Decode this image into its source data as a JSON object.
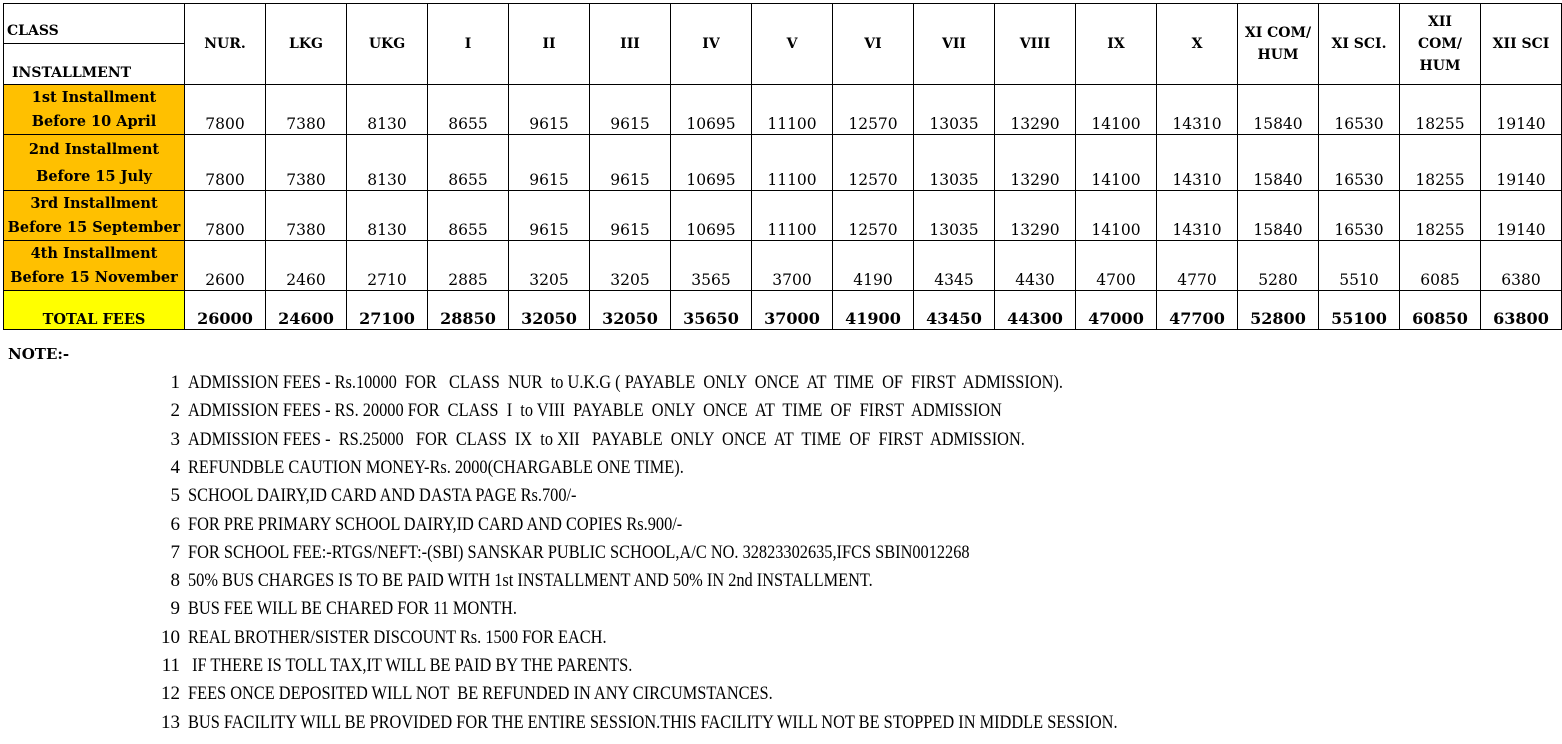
{
  "table": {
    "corner_top": "CLASS",
    "corner_bottom": "INSTALLMENT",
    "columns": [
      "NUR.",
      "LKG",
      "UKG",
      "I",
      "II",
      "III",
      "IV",
      "V",
      "VI",
      "VII",
      "VIII",
      "IX",
      "X",
      "XI COM/\nHUM",
      "XI SCI.",
      "XII\nCOM/\nHUM",
      "XII SCI"
    ],
    "rows": [
      {
        "label1": "1st Installment",
        "label2": "Before 10 April",
        "values": [
          "7800",
          "7380",
          "8130",
          "8655",
          "9615",
          "9615",
          "10695",
          "11100",
          "12570",
          "13035",
          "13290",
          "14100",
          "14310",
          "15840",
          "16530",
          "18255",
          "19140"
        ]
      },
      {
        "label1": "2nd Installment",
        "label2": "Before 15  July",
        "values": [
          "7800",
          "7380",
          "8130",
          "8655",
          "9615",
          "9615",
          "10695",
          "11100",
          "12570",
          "13035",
          "13290",
          "14100",
          "14310",
          "15840",
          "16530",
          "18255",
          "19140"
        ]
      },
      {
        "label1": "3rd Installment",
        "label2": "Before 15 September",
        "values": [
          "7800",
          "7380",
          "8130",
          "8655",
          "9615",
          "9615",
          "10695",
          "11100",
          "12570",
          "13035",
          "13290",
          "14100",
          "14310",
          "15840",
          "16530",
          "18255",
          "19140"
        ]
      },
      {
        "label1": "4th Installment",
        "label2": "Before 15 November",
        "values": [
          "2600",
          "2460",
          "2710",
          "2885",
          "3205",
          "3205",
          "3565",
          "3700",
          "4190",
          "4345",
          "4430",
          "4700",
          "4770",
          "5280",
          "5510",
          "6085",
          "6380"
        ]
      }
    ],
    "total": {
      "label": "TOTAL FEES",
      "values": [
        "26000",
        "24600",
        "27100",
        "28850",
        "32050",
        "32050",
        "35650",
        "37000",
        "41900",
        "43450",
        "44300",
        "47000",
        "47700",
        "52800",
        "55100",
        "60850",
        "63800"
      ]
    },
    "colors": {
      "installment_bg": "#ffc000",
      "total_bg": "#ffff00"
    }
  },
  "notes": {
    "heading": "NOTE:-",
    "items": [
      {
        "n": "1",
        "text": "ADMISSION FEES - Rs.10000  FOR   CLASS  NUR  to U.K.G ( PAYABLE  ONLY  ONCE  AT  TIME  OF  FIRST  ADMISSION)."
      },
      {
        "n": "2",
        "text": "ADMISSION FEES - RS. 20000 FOR  CLASS  I  to VIII  PAYABLE  ONLY  ONCE  AT  TIME  OF  FIRST  ADMISSION"
      },
      {
        "n": "3",
        "text": "ADMISSION FEES -  RS.25000   FOR  CLASS  IX  to XII   PAYABLE  ONLY  ONCE  AT  TIME  OF  FIRST  ADMISSION."
      },
      {
        "n": "4",
        "text": "REFUNDBLE CAUTION MONEY-Rs. 2000(CHARGABLE ONE TIME)."
      },
      {
        "n": "5",
        "text": "SCHOOL DAIRY,ID CARD AND DASTA PAGE Rs.700/-"
      },
      {
        "n": "6",
        "text": "FOR PRE PRIMARY SCHOOL DAIRY,ID CARD AND COPIES Rs.900/-"
      },
      {
        "n": "7",
        "text": "FOR SCHOOL FEE:-RTGS/NEFT:-(SBI) SANSKAR PUBLIC SCHOOL,A/C NO. 32823302635,IFCS SBIN0012268"
      },
      {
        "n": "8",
        "text": "50% BUS CHARGES IS TO BE PAID WITH 1st INSTALLMENT AND 50% IN 2nd INSTALLMENT."
      },
      {
        "n": "9",
        "text": "BUS FEE WILL BE CHARED FOR 11 MONTH."
      },
      {
        "n": "10",
        "text": "REAL BROTHER/SISTER DISCOUNT Rs. 1500 FOR EACH."
      },
      {
        "n": "11",
        "text": " IF THERE IS TOLL TAX,IT WILL BE PAID BY THE PARENTS."
      },
      {
        "n": "12",
        "text": "FEES ONCE DEPOSITED WILL NOT  BE REFUNDED IN ANY CIRCUMSTANCES."
      },
      {
        "n": "13",
        "text": "BUS FACILITY WILL BE PROVIDED FOR THE ENTIRE SESSION.THIS FACILITY WILL NOT BE STOPPED IN MIDDLE SESSION."
      }
    ]
  }
}
